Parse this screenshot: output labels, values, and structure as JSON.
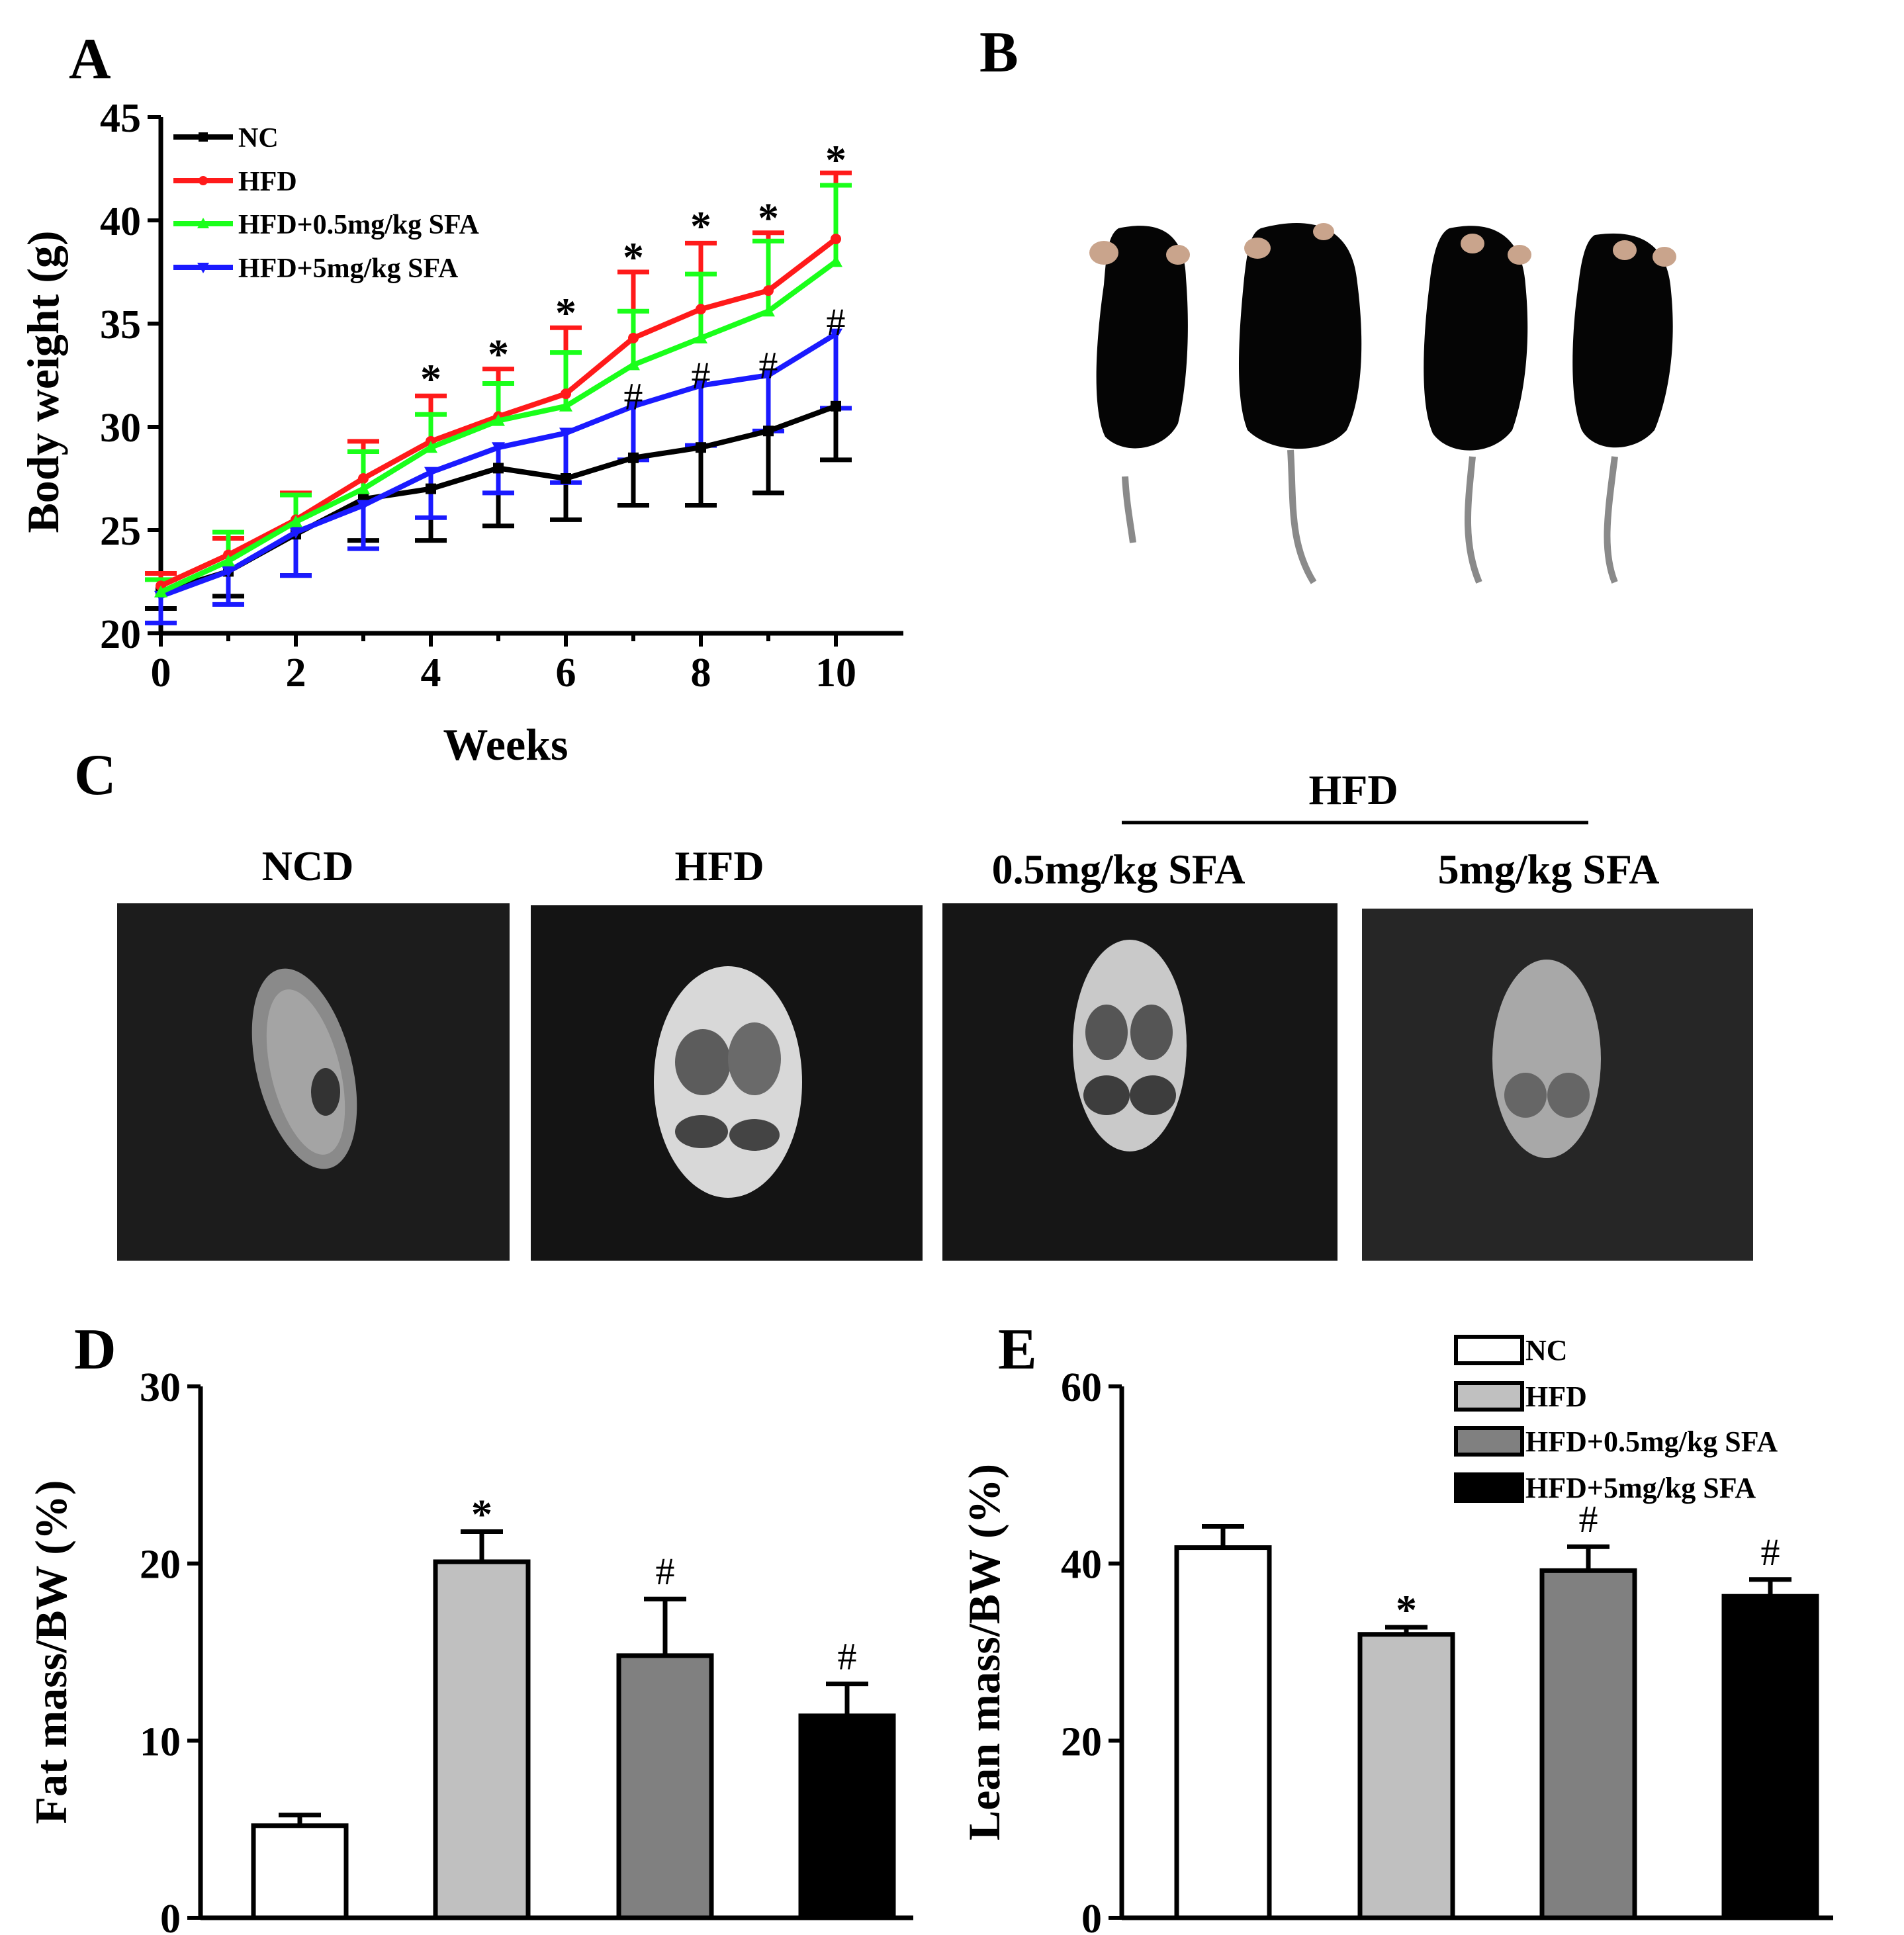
{
  "panels": {
    "A": "A",
    "B": "B",
    "C": "C",
    "D": "D",
    "E": "E"
  },
  "mri_panel": {
    "group_header": "HFD",
    "labels": [
      "NCD",
      "HFD",
      "0.5mg/kg SFA",
      "5mg/kg SFA"
    ]
  },
  "colors": {
    "NC": "#000000",
    "HFD": "#ff1a1a",
    "SFA05": "#1aff1a",
    "SFA5": "#1a1aff"
  },
  "chart_data": [
    {
      "id": "A",
      "type": "line",
      "xlabel": "Weeks",
      "ylabel": "Body weight (g)",
      "xlim": [
        0,
        11
      ],
      "ylim": [
        20,
        45
      ],
      "xticks": [
        0,
        2,
        4,
        6,
        8,
        10
      ],
      "yticks": [
        20,
        25,
        30,
        35,
        40,
        45
      ],
      "x": [
        0,
        1,
        2,
        3,
        4,
        5,
        6,
        7,
        8,
        9,
        10
      ],
      "series": [
        {
          "name": "NC",
          "color": "#000000",
          "marker": "square",
          "values": [
            22.0,
            23.0,
            24.8,
            26.5,
            27.0,
            28.0,
            27.5,
            28.5,
            29.0,
            29.8,
            31.0
          ],
          "errors": [
            0.8,
            1.2,
            2.0,
            2.0,
            2.5,
            2.8,
            2.0,
            2.3,
            2.8,
            3.0,
            2.6
          ],
          "err_dir": "down"
        },
        {
          "name": "HFD",
          "color": "#ff1a1a",
          "marker": "circle",
          "values": [
            22.3,
            23.8,
            25.5,
            27.5,
            29.3,
            30.5,
            31.6,
            34.3,
            35.7,
            36.6,
            39.1
          ],
          "errors": [
            0.6,
            0.8,
            1.3,
            1.8,
            2.2,
            2.3,
            3.2,
            3.2,
            3.2,
            2.8,
            3.2
          ],
          "err_dir": "up"
        },
        {
          "name": "HFD+0.5mg/kg SFA",
          "color": "#1aff1a",
          "marker": "triangle-up",
          "values": [
            22.0,
            23.5,
            25.4,
            27.0,
            29.0,
            30.3,
            31.0,
            33.0,
            34.3,
            35.6,
            38.0
          ],
          "errors": [
            0.6,
            1.4,
            1.3,
            1.8,
            1.6,
            1.8,
            2.6,
            2.6,
            3.1,
            3.4,
            3.7
          ],
          "err_dir": "up"
        },
        {
          "name": "HFD+5mg/kg SFA",
          "color": "#1a1aff",
          "marker": "triangle-down",
          "values": [
            21.8,
            23.0,
            24.9,
            26.2,
            27.8,
            29.0,
            29.7,
            31.0,
            32.0,
            32.5,
            34.5
          ],
          "errors": [
            1.3,
            1.6,
            2.1,
            2.1,
            2.2,
            2.2,
            2.4,
            2.6,
            2.9,
            2.7,
            3.6
          ],
          "err_dir": "down"
        }
      ],
      "annotations": [
        {
          "x": 4,
          "y": 32.6,
          "text": "*"
        },
        {
          "x": 5,
          "y": 33.8,
          "text": "*"
        },
        {
          "x": 6,
          "y": 35.8,
          "text": "*"
        },
        {
          "x": 7,
          "y": 38.5,
          "text": "*"
        },
        {
          "x": 8,
          "y": 40.0,
          "text": "*"
        },
        {
          "x": 9,
          "y": 40.4,
          "text": "*"
        },
        {
          "x": 10,
          "y": 43.2,
          "text": "*"
        },
        {
          "x": 7,
          "y": 31.3,
          "text": "#"
        },
        {
          "x": 8,
          "y": 32.3,
          "text": "#"
        },
        {
          "x": 9,
          "y": 32.8,
          "text": "#"
        },
        {
          "x": 10,
          "y": 34.9,
          "text": "#"
        }
      ]
    },
    {
      "id": "D",
      "type": "bar",
      "ylabel": "Fat mass/BW (%)",
      "ylim": [
        0,
        30
      ],
      "yticks": [
        0,
        10,
        20,
        30
      ],
      "categories": [
        "NC",
        "HFD",
        "HFD+0.5mg/kg SFA",
        "HFD+5mg/kg SFA"
      ],
      "values": [
        5.2,
        20.1,
        14.8,
        11.4
      ],
      "errors": [
        0.6,
        1.7,
        3.2,
        1.8
      ],
      "fills": [
        "#ffffff",
        "#c0c0c0",
        "#808080",
        "#000000"
      ],
      "annotations": [
        "",
        "*",
        "#",
        "#"
      ]
    },
    {
      "id": "E",
      "type": "bar",
      "ylabel": "Lean mass/BW (%)",
      "ylim": [
        0,
        60
      ],
      "yticks": [
        0,
        20,
        40,
        60
      ],
      "categories": [
        "NC",
        "HFD",
        "HFD+0.5mg/kg SFA",
        "HFD+5mg/kg SFA"
      ],
      "values": [
        41.8,
        32.0,
        39.2,
        36.3
      ],
      "errors": [
        2.4,
        0.8,
        2.7,
        1.9
      ],
      "fills": [
        "#ffffff",
        "#c0c0c0",
        "#808080",
        "#000000"
      ],
      "annotations": [
        "",
        "*",
        "#",
        "#"
      ],
      "legend": [
        "NC",
        "HFD",
        "HFD+0.5mg/kg SFA",
        "HFD+5mg/kg SFA"
      ]
    }
  ]
}
